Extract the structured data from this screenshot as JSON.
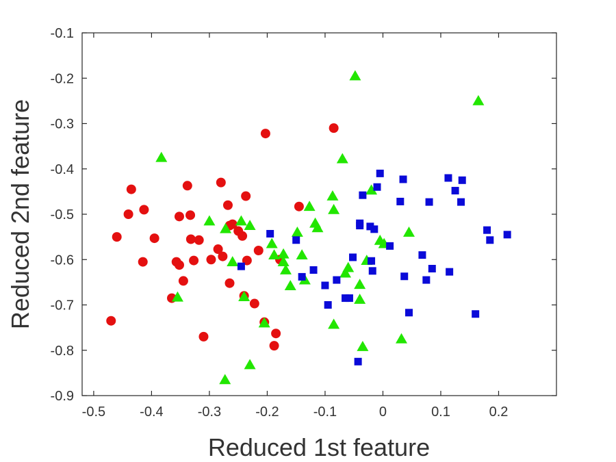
{
  "chart_data": {
    "type": "scatter",
    "title": "",
    "xlabel": "Reduced 1st feature",
    "ylabel": "Reduced 2nd feature",
    "xlim": [
      -0.52,
      0.3
    ],
    "ylim": [
      -0.9,
      -0.1
    ],
    "xticks": [
      -0.5,
      -0.4,
      -0.3,
      -0.2,
      -0.1,
      0,
      0.1,
      0.2
    ],
    "yticks": [
      -0.9,
      -0.8,
      -0.7,
      -0.6,
      -0.5,
      -0.4,
      -0.3,
      -0.2,
      -0.1
    ],
    "xtick_labels": [
      "-0.5",
      "-0.4",
      "-0.3",
      "-0.2",
      "-0.1",
      "0",
      "0.1",
      "0.2"
    ],
    "ytick_labels": [
      "-0.9",
      "-0.8",
      "-0.7",
      "-0.6",
      "-0.5",
      "-0.4",
      "-0.3",
      "-0.2",
      "-0.1"
    ],
    "grid": false,
    "legend": "none",
    "series": [
      {
        "marker": "circle",
        "color": "#e41010",
        "points": [
          [
            -0.47,
            -0.735
          ],
          [
            -0.46,
            -0.55
          ],
          [
            -0.44,
            -0.5
          ],
          [
            -0.435,
            -0.445
          ],
          [
            -0.415,
            -0.605
          ],
          [
            -0.413,
            -0.49
          ],
          [
            -0.395,
            -0.553
          ],
          [
            -0.365,
            -0.685
          ],
          [
            -0.357,
            -0.605
          ],
          [
            -0.352,
            -0.505
          ],
          [
            -0.352,
            -0.612
          ],
          [
            -0.345,
            -0.647
          ],
          [
            -0.338,
            -0.437
          ],
          [
            -0.333,
            -0.502
          ],
          [
            -0.332,
            -0.555
          ],
          [
            -0.327,
            -0.602
          ],
          [
            -0.318,
            -0.557
          ],
          [
            -0.31,
            -0.77
          ],
          [
            -0.297,
            -0.6
          ],
          [
            -0.285,
            -0.577
          ],
          [
            -0.28,
            -0.43
          ],
          [
            -0.277,
            -0.593
          ],
          [
            -0.268,
            -0.48
          ],
          [
            -0.265,
            -0.652
          ],
          [
            -0.265,
            -0.525
          ],
          [
            -0.26,
            -0.522
          ],
          [
            -0.25,
            -0.537
          ],
          [
            -0.243,
            -0.548
          ],
          [
            -0.24,
            -0.68
          ],
          [
            -0.237,
            -0.46
          ],
          [
            -0.235,
            -0.602
          ],
          [
            -0.222,
            -0.697
          ],
          [
            -0.215,
            -0.58
          ],
          [
            -0.205,
            -0.738
          ],
          [
            -0.203,
            -0.322
          ],
          [
            -0.188,
            -0.79
          ],
          [
            -0.185,
            -0.763
          ],
          [
            -0.178,
            -0.6
          ],
          [
            -0.145,
            -0.483
          ],
          [
            -0.085,
            -0.31
          ]
        ]
      },
      {
        "marker": "triangle",
        "color": "#22e600",
        "points": [
          [
            -0.383,
            -0.375
          ],
          [
            -0.355,
            -0.683
          ],
          [
            -0.3,
            -0.515
          ],
          [
            -0.273,
            -0.865
          ],
          [
            -0.272,
            -0.532
          ],
          [
            -0.26,
            -0.605
          ],
          [
            -0.245,
            -0.515
          ],
          [
            -0.24,
            -0.682
          ],
          [
            -0.23,
            -0.525
          ],
          [
            -0.23,
            -0.832
          ],
          [
            -0.205,
            -0.74
          ],
          [
            -0.192,
            -0.565
          ],
          [
            -0.188,
            -0.59
          ],
          [
            -0.172,
            -0.605
          ],
          [
            -0.172,
            -0.588
          ],
          [
            -0.168,
            -0.623
          ],
          [
            -0.16,
            -0.658
          ],
          [
            -0.148,
            -0.54
          ],
          [
            -0.14,
            -0.59
          ],
          [
            -0.135,
            -0.645
          ],
          [
            -0.127,
            -0.483
          ],
          [
            -0.117,
            -0.52
          ],
          [
            -0.113,
            -0.53
          ],
          [
            -0.087,
            -0.46
          ],
          [
            -0.085,
            -0.49
          ],
          [
            -0.085,
            -0.743
          ],
          [
            -0.07,
            -0.378
          ],
          [
            -0.065,
            -0.63
          ],
          [
            -0.06,
            -0.618
          ],
          [
            -0.048,
            -0.195
          ],
          [
            -0.04,
            -0.688
          ],
          [
            -0.04,
            -0.655
          ],
          [
            -0.035,
            -0.792
          ],
          [
            -0.028,
            -0.602
          ],
          [
            -0.02,
            -0.447
          ],
          [
            -0.005,
            -0.558
          ],
          [
            0.002,
            -0.565
          ],
          [
            0.032,
            -0.775
          ],
          [
            0.045,
            -0.54
          ],
          [
            0.165,
            -0.25
          ]
        ]
      },
      {
        "marker": "square",
        "color": "#0a0ad8",
        "points": [
          [
            -0.245,
            -0.615
          ],
          [
            -0.195,
            -0.543
          ],
          [
            -0.15,
            -0.557
          ],
          [
            -0.14,
            -0.638
          ],
          [
            -0.12,
            -0.623
          ],
          [
            -0.1,
            -0.657
          ],
          [
            -0.095,
            -0.7
          ],
          [
            -0.08,
            -0.645
          ],
          [
            -0.065,
            -0.685
          ],
          [
            -0.058,
            -0.685
          ],
          [
            -0.052,
            -0.595
          ],
          [
            -0.043,
            -0.825
          ],
          [
            -0.04,
            -0.52
          ],
          [
            -0.04,
            -0.525
          ],
          [
            -0.035,
            -0.458
          ],
          [
            -0.022,
            -0.527
          ],
          [
            -0.02,
            -0.603
          ],
          [
            -0.018,
            -0.625
          ],
          [
            -0.015,
            -0.533
          ],
          [
            -0.01,
            -0.44
          ],
          [
            -0.005,
            -0.41
          ],
          [
            0.012,
            -0.57
          ],
          [
            0.03,
            -0.472
          ],
          [
            0.035,
            -0.423
          ],
          [
            0.037,
            -0.637
          ],
          [
            0.045,
            -0.717
          ],
          [
            0.068,
            -0.59
          ],
          [
            0.075,
            -0.645
          ],
          [
            0.08,
            -0.473
          ],
          [
            0.085,
            -0.62
          ],
          [
            0.113,
            -0.42
          ],
          [
            0.115,
            -0.627
          ],
          [
            0.125,
            -0.448
          ],
          [
            0.135,
            -0.473
          ],
          [
            0.137,
            -0.425
          ],
          [
            0.16,
            -0.72
          ],
          [
            0.18,
            -0.535
          ],
          [
            0.185,
            -0.557
          ],
          [
            0.215,
            -0.545
          ]
        ]
      }
    ]
  }
}
